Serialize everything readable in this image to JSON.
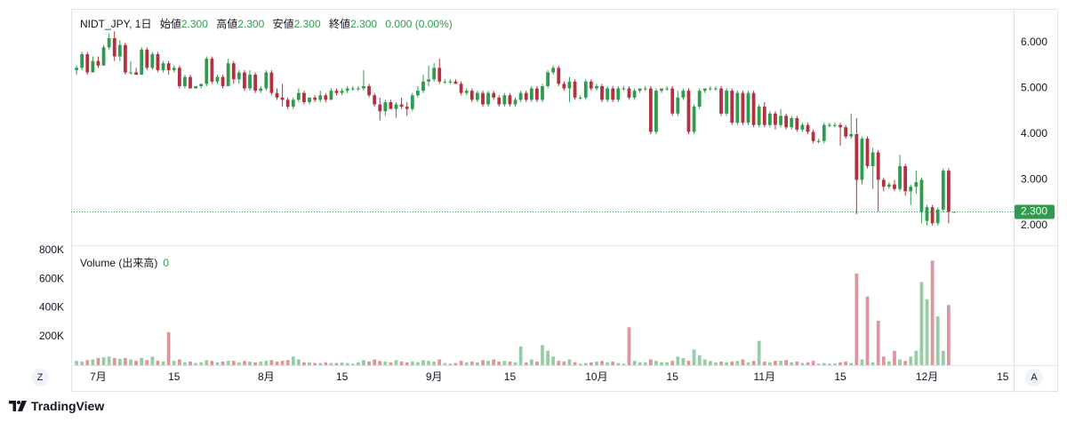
{
  "chart_data": {
    "type": "candlestick",
    "title": "NIDT_JPY, 1日",
    "legend": {
      "open_label": "始値",
      "open": "2.300",
      "high_label": "高値",
      "high": "2.300",
      "low_label": "安値",
      "low": "2.300",
      "close_label": "終値",
      "close": "2.300",
      "change": "0.000 (0.00%)"
    },
    "volume_title": "Volume (出来高)",
    "up_color": "#2f9b4d",
    "down_color": "#b5303e",
    "grid": false,
    "x": [
      "06-27",
      "06-28",
      "06-29",
      "06-30",
      "07-01",
      "07-02",
      "07-03",
      "07-04",
      "07-05",
      "07-06",
      "07-07",
      "07-08",
      "07-09",
      "07-10",
      "07-11",
      "07-12",
      "07-13",
      "07-14",
      "07-15",
      "07-16",
      "07-17",
      "07-18",
      "07-19",
      "07-20",
      "07-21",
      "07-22",
      "07-23",
      "07-24",
      "07-25",
      "07-26",
      "07-27",
      "07-28",
      "07-29",
      "07-30",
      "07-31",
      "08-01",
      "08-02",
      "08-03",
      "08-04",
      "08-05",
      "08-06",
      "08-07",
      "08-08",
      "08-09",
      "08-10",
      "08-11",
      "08-12",
      "08-13",
      "08-14",
      "08-15",
      "08-16",
      "08-17",
      "08-18",
      "08-19",
      "08-20",
      "08-21",
      "08-22",
      "08-23",
      "08-24",
      "08-25",
      "08-26",
      "08-27",
      "08-28",
      "08-29",
      "08-30",
      "08-31",
      "09-01",
      "09-02",
      "09-03",
      "09-04",
      "09-05",
      "09-06",
      "09-07",
      "09-08",
      "09-09",
      "09-10",
      "09-11",
      "09-12",
      "09-13",
      "09-14",
      "09-15",
      "09-16",
      "09-17",
      "09-18",
      "09-19",
      "09-20",
      "09-21",
      "09-22",
      "09-23",
      "09-24",
      "09-25",
      "09-26",
      "09-27",
      "09-28",
      "09-29",
      "09-30",
      "10-01",
      "10-02",
      "10-03",
      "10-04",
      "10-05",
      "10-06",
      "10-07",
      "10-08",
      "10-09",
      "10-10",
      "10-11",
      "10-12",
      "10-13",
      "10-14",
      "10-15",
      "10-16",
      "10-17",
      "10-18",
      "10-19",
      "10-20",
      "10-21",
      "10-22",
      "10-23",
      "10-24",
      "10-25",
      "10-26",
      "10-27",
      "10-28",
      "10-29",
      "10-30",
      "10-31",
      "11-01",
      "11-02",
      "11-03",
      "11-04",
      "11-05",
      "11-06",
      "11-07",
      "11-08",
      "11-09",
      "11-10",
      "11-11",
      "11-12",
      "11-13",
      "11-14",
      "11-15",
      "11-16",
      "11-17",
      "11-18",
      "11-19",
      "11-20",
      "11-21",
      "11-22",
      "11-23",
      "11-24",
      "11-25",
      "11-26",
      "11-27",
      "11-28",
      "11-29",
      "11-30",
      "12-01",
      "12-02",
      "12-03",
      "12-04",
      "12-05",
      "12-06"
    ],
    "open": [
      5.4,
      5.45,
      5.75,
      5.35,
      5.6,
      5.5,
      5.9,
      6.1,
      5.7,
      5.95,
      5.35,
      5.35,
      5.3,
      5.85,
      5.45,
      5.75,
      5.4,
      5.55,
      5.4,
      5.45,
      5.05,
      5.25,
      5.0,
      5.05,
      5.1,
      5.65,
      5.15,
      5.25,
      5.05,
      5.55,
      5.2,
      5.35,
      5.0,
      5.3,
      4.95,
      5.0,
      5.35,
      4.9,
      4.8,
      4.75,
      4.6,
      4.75,
      4.9,
      4.7,
      4.8,
      4.75,
      4.85,
      4.75,
      4.95,
      4.9,
      4.95,
      5.0,
      5.0,
      5.0,
      5.05,
      4.85,
      4.65,
      4.5,
      4.7,
      4.55,
      4.65,
      4.6,
      4.55,
      4.85,
      4.95,
      5.15,
      5.2,
      5.45,
      5.15,
      5.15,
      5.15,
      5.1,
      4.9,
      4.95,
      4.75,
      4.9,
      4.65,
      4.9,
      4.8,
      4.65,
      4.85,
      4.65,
      4.75,
      4.9,
      4.75,
      5.0,
      4.75,
      5.05,
      5.35,
      5.45,
      5.1,
      5.0,
      5.15,
      4.8,
      4.8,
      5.15,
      5.0,
      5.05,
      4.75,
      5.0,
      4.75,
      5.0,
      5.0,
      4.8,
      4.95,
      5.0,
      5.0,
      4.05,
      4.95,
      5.0,
      5.0,
      4.45,
      4.8,
      4.95,
      4.05,
      4.6,
      4.95,
      5.0,
      5.0,
      5.0,
      4.45,
      4.95,
      4.25,
      4.9,
      4.25,
      4.9,
      4.2,
      4.6,
      4.2,
      4.45,
      4.2,
      4.4,
      4.15,
      4.35,
      4.1,
      4.2,
      4.05,
      3.85,
      3.85,
      4.2,
      4.2,
      4.2,
      4.15,
      3.95,
      4.0,
      3.0,
      3.9,
      3.3,
      3.6,
      3.0,
      2.85,
      2.9,
      2.8,
      3.3,
      2.75,
      2.85,
      2.3,
      2.1,
      2.4,
      2.05,
      2.35,
      3.2,
      2.3
    ],
    "high": [
      5.5,
      5.8,
      5.8,
      5.7,
      5.7,
      5.95,
      6.2,
      6.25,
      6.05,
      6.0,
      5.6,
      5.45,
      5.9,
      5.9,
      5.8,
      5.8,
      5.6,
      5.6,
      5.5,
      5.5,
      5.3,
      5.3,
      5.05,
      5.1,
      5.7,
      5.7,
      5.3,
      5.3,
      5.65,
      5.6,
      5.4,
      5.4,
      5.4,
      5.35,
      5.05,
      5.4,
      5.4,
      5.0,
      5.1,
      4.8,
      4.8,
      5.0,
      4.95,
      4.8,
      4.85,
      4.95,
      4.9,
      5.0,
      5.0,
      5.0,
      5.05,
      5.05,
      5.05,
      5.4,
      5.1,
      4.9,
      4.8,
      4.75,
      4.75,
      4.7,
      4.8,
      4.7,
      4.9,
      5.05,
      5.3,
      5.5,
      5.55,
      5.65,
      5.2,
      5.2,
      5.2,
      5.15,
      5.0,
      5.0,
      4.95,
      4.95,
      4.95,
      4.95,
      4.85,
      4.9,
      4.9,
      4.8,
      4.95,
      4.95,
      5.05,
      5.05,
      5.1,
      5.4,
      5.5,
      5.5,
      5.15,
      5.25,
      5.2,
      4.85,
      5.2,
      5.2,
      5.1,
      5.1,
      5.05,
      5.05,
      5.05,
      5.05,
      5.05,
      5.0,
      5.0,
      5.05,
      5.05,
      5.0,
      5.0,
      5.05,
      5.05,
      4.95,
      5.0,
      5.0,
      4.65,
      5.0,
      5.0,
      5.05,
      5.05,
      5.05,
      5.0,
      5.0,
      4.95,
      4.95,
      4.95,
      4.95,
      4.65,
      4.7,
      4.5,
      4.5,
      4.55,
      4.45,
      4.4,
      4.4,
      4.25,
      4.25,
      4.1,
      3.9,
      4.25,
      4.25,
      4.25,
      4.25,
      4.2,
      4.45,
      4.35,
      3.95,
      3.95,
      3.7,
      3.65,
      3.05,
      2.95,
      3.0,
      3.55,
      3.35,
      2.9,
      3.2,
      3.05,
      2.45,
      2.45,
      2.4,
      3.25,
      3.25,
      2.3
    ],
    "low": [
      5.3,
      5.4,
      5.3,
      5.35,
      5.45,
      5.5,
      5.85,
      5.6,
      5.6,
      5.3,
      5.3,
      5.3,
      5.3,
      5.4,
      5.4,
      5.35,
      5.35,
      5.3,
      5.35,
      5.0,
      5.0,
      5.0,
      5.0,
      5.0,
      5.05,
      5.1,
      5.1,
      5.0,
      5.05,
      5.1,
      5.1,
      4.95,
      4.95,
      4.9,
      4.9,
      4.95,
      4.85,
      4.75,
      4.6,
      4.55,
      4.55,
      4.7,
      4.65,
      4.65,
      4.7,
      4.7,
      4.7,
      4.75,
      4.85,
      4.85,
      4.9,
      4.95,
      4.95,
      4.95,
      4.8,
      4.6,
      4.3,
      4.4,
      4.55,
      4.35,
      4.55,
      4.4,
      4.5,
      4.8,
      4.9,
      5.05,
      5.15,
      5.1,
      5.1,
      5.1,
      5.1,
      4.85,
      4.85,
      4.7,
      4.7,
      4.6,
      4.6,
      4.75,
      4.6,
      4.6,
      4.6,
      4.6,
      4.7,
      4.7,
      4.7,
      4.7,
      4.7,
      5.0,
      5.3,
      5.05,
      4.95,
      4.7,
      4.75,
      4.75,
      4.75,
      4.95,
      4.95,
      4.7,
      4.7,
      4.7,
      4.7,
      4.95,
      4.75,
      4.75,
      4.9,
      4.95,
      4.0,
      4.0,
      4.9,
      4.95,
      4.4,
      4.4,
      4.75,
      4.0,
      4.0,
      4.55,
      4.9,
      4.95,
      4.95,
      4.4,
      4.4,
      4.2,
      4.2,
      4.2,
      4.2,
      4.15,
      4.15,
      4.15,
      4.15,
      4.1,
      4.15,
      4.1,
      4.1,
      4.05,
      4.05,
      4.0,
      3.8,
      3.8,
      3.8,
      4.15,
      4.15,
      3.75,
      3.9,
      3.9,
      2.25,
      2.9,
      3.25,
      2.8,
      2.3,
      2.75,
      2.8,
      2.75,
      2.75,
      2.65,
      2.45,
      2.7,
      2.05,
      2.0,
      2.0,
      2.0,
      2.3,
      2.05,
      2.3
    ],
    "close": [
      5.45,
      5.75,
      5.35,
      5.6,
      5.5,
      5.9,
      6.1,
      5.7,
      5.95,
      5.35,
      5.35,
      5.3,
      5.85,
      5.45,
      5.75,
      5.4,
      5.55,
      5.4,
      5.45,
      5.05,
      5.25,
      5.0,
      5.05,
      5.1,
      5.65,
      5.15,
      5.25,
      5.05,
      5.55,
      5.2,
      5.35,
      5.0,
      5.3,
      4.95,
      5.0,
      5.35,
      4.9,
      4.8,
      4.75,
      4.6,
      4.75,
      4.9,
      4.7,
      4.8,
      4.75,
      4.85,
      4.75,
      4.95,
      4.9,
      4.95,
      5.0,
      5.0,
      5.0,
      5.05,
      4.85,
      4.65,
      4.5,
      4.7,
      4.55,
      4.65,
      4.6,
      4.55,
      4.85,
      4.95,
      5.15,
      5.2,
      5.45,
      5.15,
      5.15,
      5.15,
      5.1,
      4.9,
      4.95,
      4.75,
      4.9,
      4.65,
      4.9,
      4.8,
      4.65,
      4.85,
      4.65,
      4.75,
      4.9,
      4.75,
      5.0,
      4.75,
      5.05,
      5.35,
      5.45,
      5.1,
      5.0,
      5.15,
      4.8,
      4.8,
      5.15,
      5.0,
      5.05,
      4.75,
      5.0,
      4.75,
      5.0,
      5.0,
      4.8,
      4.95,
      5.0,
      5.0,
      4.05,
      4.95,
      5.0,
      5.0,
      4.45,
      4.8,
      4.95,
      4.05,
      4.6,
      4.95,
      5.0,
      5.0,
      5.0,
      4.45,
      4.95,
      4.25,
      4.9,
      4.25,
      4.9,
      4.2,
      4.6,
      4.2,
      4.45,
      4.2,
      4.4,
      4.15,
      4.35,
      4.1,
      4.2,
      4.05,
      3.85,
      3.85,
      4.2,
      4.2,
      4.2,
      4.15,
      3.95,
      4.0,
      3.0,
      3.9,
      3.3,
      3.6,
      3.0,
      2.85,
      2.9,
      2.8,
      3.3,
      2.75,
      2.85,
      2.95,
      3.0,
      2.4,
      2.05,
      2.35,
      3.2,
      2.3,
      2.3
    ],
    "volume": [
      30000,
      25000,
      35000,
      40000,
      50000,
      55000,
      60000,
      50000,
      45000,
      50000,
      40000,
      30000,
      50000,
      35000,
      60000,
      30000,
      25000,
      230000,
      30000,
      40000,
      20000,
      25000,
      15000,
      20000,
      35000,
      30000,
      20000,
      25000,
      30000,
      30000,
      20000,
      30000,
      25000,
      20000,
      25000,
      30000,
      35000,
      25000,
      30000,
      35000,
      60000,
      40000,
      20000,
      20000,
      15000,
      15000,
      20000,
      15000,
      15000,
      20000,
      15000,
      10000,
      20000,
      35000,
      25000,
      40000,
      30000,
      25000,
      20000,
      35000,
      25000,
      20000,
      25000,
      20000,
      35000,
      30000,
      25000,
      40000,
      15000,
      10000,
      15000,
      30000,
      20000,
      25000,
      20000,
      35000,
      30000,
      40000,
      25000,
      30000,
      25000,
      20000,
      130000,
      20000,
      40000,
      25000,
      140000,
      100000,
      60000,
      30000,
      25000,
      40000,
      20000,
      10000,
      15000,
      20000,
      25000,
      30000,
      20000,
      25000,
      15000,
      10000,
      265000,
      30000,
      20000,
      20000,
      40000,
      30000,
      20000,
      20000,
      30000,
      60000,
      50000,
      30000,
      110000,
      70000,
      40000,
      30000,
      20000,
      25000,
      20000,
      25000,
      30000,
      40000,
      20000,
      30000,
      170000,
      25000,
      20000,
      30000,
      30000,
      35000,
      20000,
      25000,
      15000,
      20000,
      30000,
      10000,
      15000,
      10000,
      10000,
      20000,
      25000,
      15000,
      640000,
      40000,
      480000,
      20000,
      310000,
      60000,
      25000,
      100000,
      40000,
      30000,
      60000,
      100000,
      580000,
      460000,
      730000,
      340000,
      100000,
      420000,
      0
    ],
    "xlim": [
      "06-26",
      "12-17"
    ],
    "xticks": [
      {
        "value": "07-01",
        "label": "7月"
      },
      {
        "value": "07-15",
        "label": "15"
      },
      {
        "value": "08-01",
        "label": "8月"
      },
      {
        "value": "08-15",
        "label": "15"
      },
      {
        "value": "09-01",
        "label": "9月"
      },
      {
        "value": "09-15",
        "label": "15"
      },
      {
        "value": "10-01",
        "label": "10月"
      },
      {
        "value": "10-15",
        "label": "15"
      },
      {
        "value": "11-01",
        "label": "11月"
      },
      {
        "value": "11-15",
        "label": "15"
      },
      {
        "value": "12-01",
        "label": "12月"
      },
      {
        "value": "12-15",
        "label": "15"
      }
    ],
    "ylim": [
      1.57,
      6.74
    ],
    "yticks": [
      {
        "value": 2,
        "label": "2.000"
      },
      {
        "value": 3,
        "label": "3.000"
      },
      {
        "value": 4,
        "label": "4.000"
      },
      {
        "value": 5,
        "label": "5.000"
      },
      {
        "value": 6,
        "label": "6.000"
      }
    ],
    "volume_ylim": [
      0,
      825000
    ],
    "volume_yticks": [
      {
        "value": 200000,
        "label": "200K"
      },
      {
        "value": 400000,
        "label": "400K"
      },
      {
        "value": 600000,
        "label": "600K"
      },
      {
        "value": 800000,
        "label": "800K"
      }
    ],
    "last_price": {
      "value": 2.3,
      "label": "2.300"
    }
  },
  "controls": {
    "zoom": "Z",
    "auto": "A"
  },
  "footer": {
    "brand": "TradingView"
  }
}
